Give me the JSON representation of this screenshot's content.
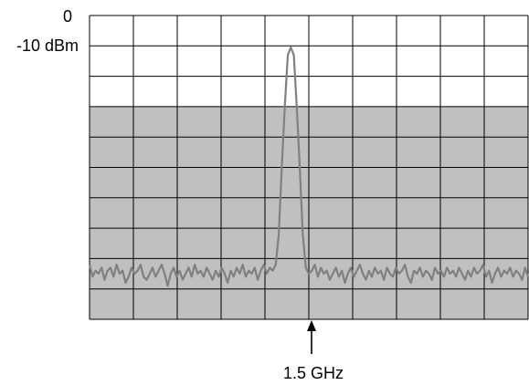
{
  "chart_data": {
    "type": "line",
    "title": "",
    "xlabel": "",
    "ylabel": "",
    "y_tick_labels": [
      "0",
      "-10 dBm"
    ],
    "marker_label": "1.5 GHz",
    "grid": true,
    "grid_divisions": {
      "x": 10,
      "y": 10
    },
    "shaded_band": {
      "from_division": 3,
      "to_division": 10,
      "color": "#c0c0c0"
    },
    "colors": {
      "trace": "#808080",
      "grid": "#000000",
      "shade": "#c0c0c0",
      "background": "#ffffff"
    },
    "series": [
      {
        "values_in_divisions": [
          8.2,
          8.6,
          8.4,
          8.5,
          8.3,
          8.7,
          8.4,
          8.3,
          8.6,
          8.2,
          8.5,
          8.4,
          8.8,
          8.6,
          8.3,
          8.5,
          8.4,
          8.2,
          8.6,
          8.7,
          8.5,
          8.3,
          8.6,
          8.4,
          8.2,
          8.5,
          8.9,
          8.5,
          8.3,
          8.6,
          8.4,
          8.7,
          8.5,
          8.3,
          8.6,
          8.2,
          8.5,
          8.4,
          8.6,
          8.3,
          8.5,
          8.7,
          8.4,
          8.6,
          8.3,
          8.5,
          8.8,
          8.4,
          8.6,
          8.3,
          8.5,
          8.2,
          8.6,
          8.4,
          8.5,
          8.3,
          8.7,
          8.4,
          8.2,
          8.5,
          8.3,
          8.4,
          8.2,
          7.2,
          5.0,
          3.0,
          1.3,
          1.05,
          1.3,
          3.0,
          5.0,
          7.2,
          8.3,
          8.5,
          8.4,
          8.2,
          8.6,
          8.3,
          8.5,
          8.4,
          8.7,
          8.5,
          8.3,
          8.6,
          8.4,
          8.8,
          8.5,
          8.3,
          8.6,
          8.4,
          8.2,
          8.5,
          8.7,
          8.4,
          8.6,
          8.3,
          8.5,
          8.4,
          8.7,
          8.3,
          8.5,
          8.6,
          8.3,
          8.5,
          8.4,
          8.2,
          8.6,
          8.8,
          8.4,
          8.5,
          8.3,
          8.6,
          8.4,
          8.5,
          8.7,
          8.3,
          8.5,
          8.4,
          8.6,
          8.3,
          8.5,
          8.4,
          8.6,
          8.3,
          8.5,
          8.7,
          8.4,
          8.6,
          8.3,
          8.5,
          8.4,
          8.2,
          8.6,
          8.4,
          8.8,
          8.5,
          8.3,
          8.6,
          8.4,
          8.5,
          8.3,
          8.6,
          8.4,
          8.5,
          8.7,
          8.3,
          8.6
        ]
      }
    ]
  }
}
